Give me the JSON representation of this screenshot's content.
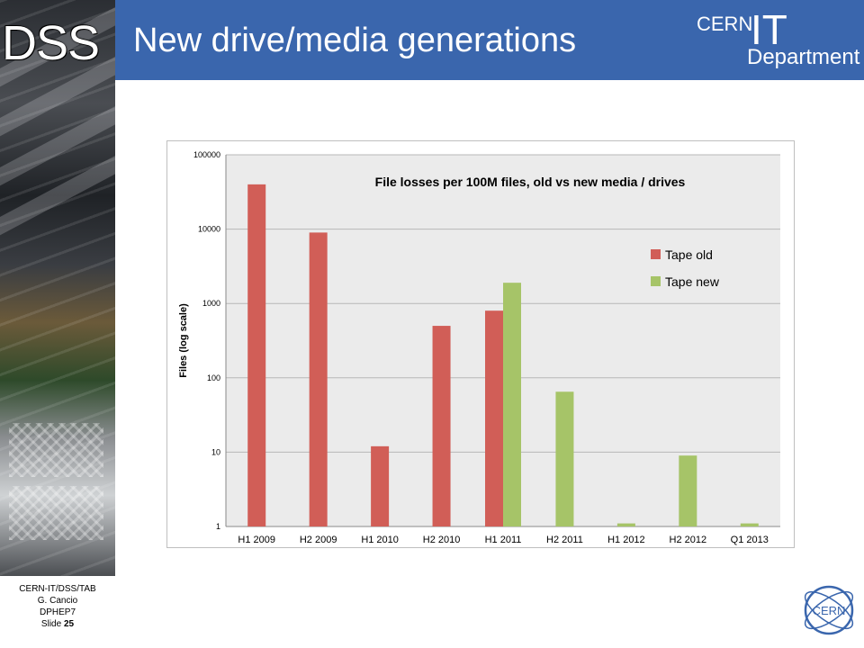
{
  "sidebar": {
    "brand": "DSS"
  },
  "header": {
    "title": "New drive/media generations",
    "logo": {
      "cern": "CERN",
      "it": "IT",
      "department": "Department"
    }
  },
  "footer": {
    "line1": "CERN-IT/DSS/TAB",
    "line2": "G. Cancio",
    "line3": "DPHEP7",
    "slide_label": "Slide",
    "slide_number": "25"
  },
  "badge": {
    "text": "CERN"
  },
  "colors": {
    "header_bg": "#3a66ad",
    "tape_old": "#d15e57",
    "tape_new": "#a6c468",
    "plot_bg": "#ebebeb"
  },
  "chart_data": {
    "type": "bar",
    "title": "File losses per 100M files, old vs new media / drives",
    "ylabel": "Files (log scale)",
    "xlabel": "",
    "yscale": "log",
    "ylim": [
      1,
      100000
    ],
    "yticks": [
      "1",
      "10",
      "100",
      "1000",
      "10000",
      "100000"
    ],
    "categories": [
      "H1 2009",
      "H2 2009",
      "H1 2010",
      "H2 2010",
      "H1 2011",
      "H2 2011",
      "H1 2012",
      "H2 2012",
      "Q1 2013"
    ],
    "series": [
      {
        "name": "Tape old",
        "color": "#d15e57",
        "values": [
          40000,
          9000,
          12,
          500,
          800,
          null,
          null,
          null,
          null
        ]
      },
      {
        "name": "Tape new",
        "color": "#a6c468",
        "values": [
          null,
          null,
          null,
          null,
          1900,
          65,
          1.1,
          9,
          1.1
        ]
      }
    ],
    "legend": "right",
    "grid": true
  }
}
